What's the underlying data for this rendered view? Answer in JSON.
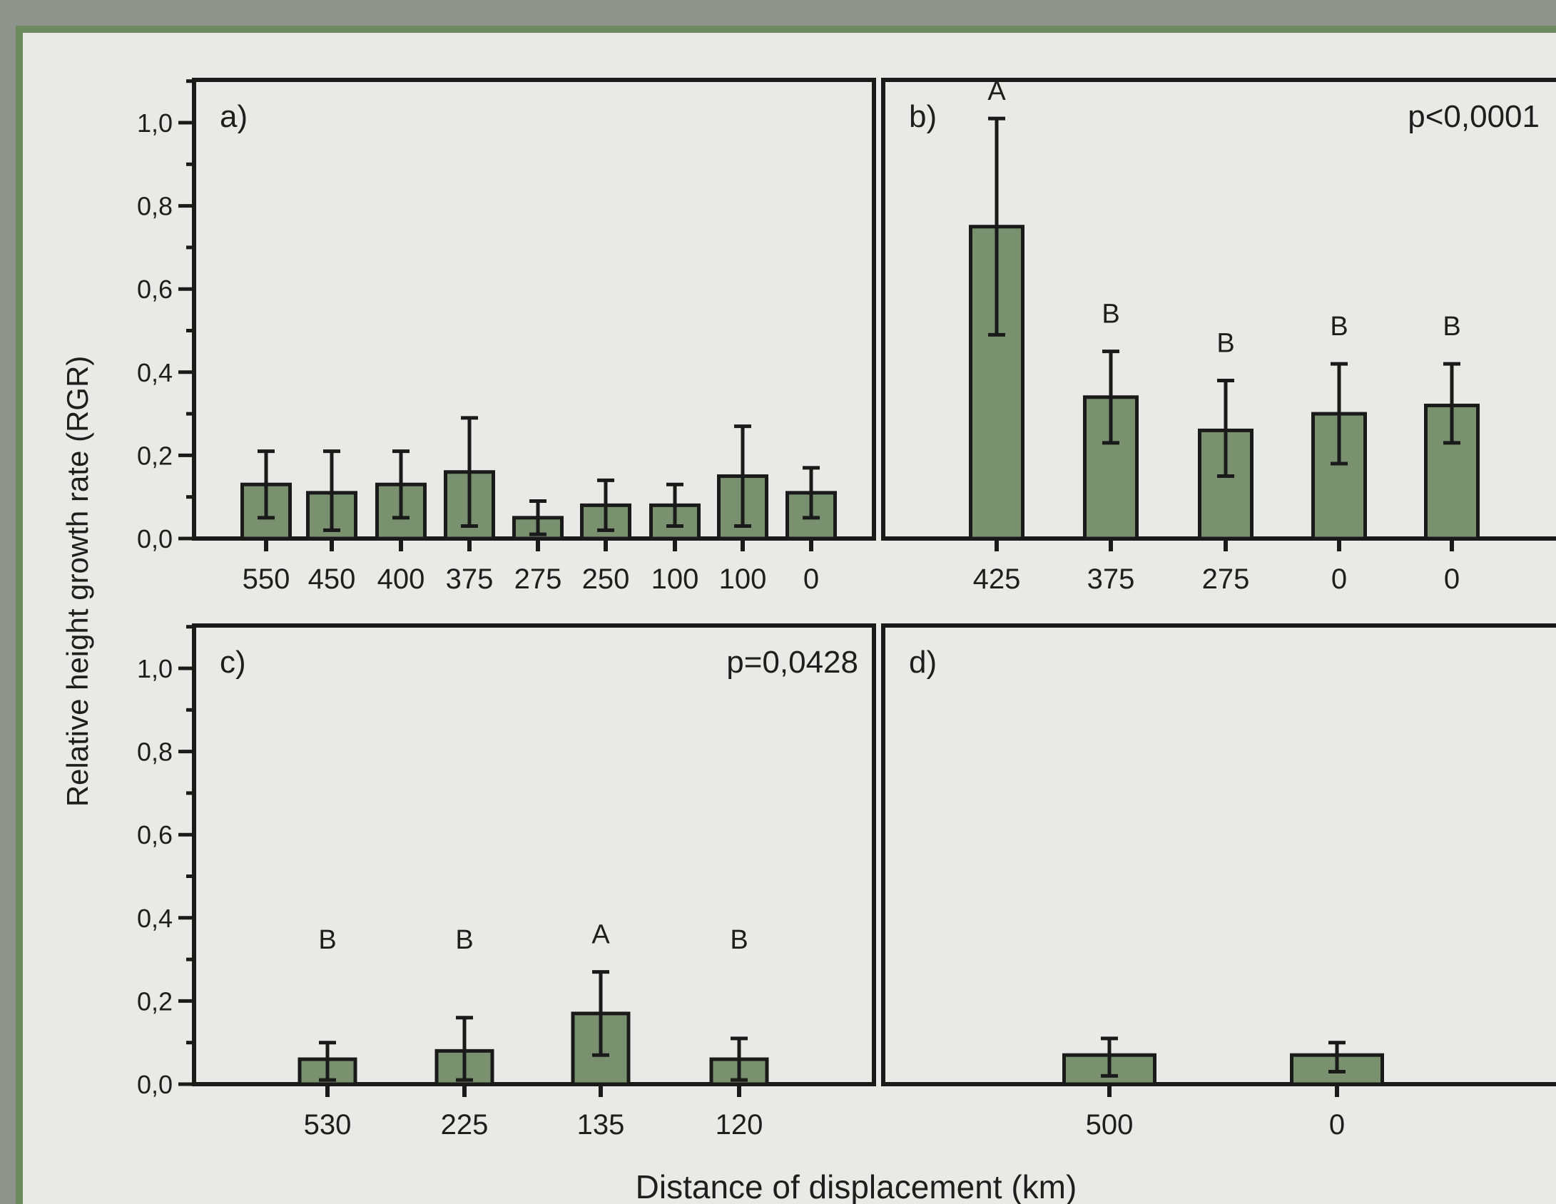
{
  "figure": {
    "ylabel": "Relative height  growth rate (RGR)",
    "xlabel": "Distance of displacement (km)",
    "y_ticks": [
      "0,0",
      "0,2",
      "0,4",
      "0,6",
      "0,8",
      "1,0"
    ],
    "bar_color": "#7a9170",
    "bg_color": "#e9eae8",
    "frame_color": "#6d8a5f"
  },
  "chart_data": [
    {
      "panel": "a)",
      "type": "bar",
      "pvalue": "",
      "categories": [
        "550",
        "450",
        "400",
        "375",
        "275",
        "250",
        "100",
        "100",
        "0"
      ],
      "values": [
        0.13,
        0.11,
        0.13,
        0.16,
        0.05,
        0.08,
        0.08,
        0.15,
        0.11
      ],
      "error_low": [
        0.05,
        0.02,
        0.05,
        0.03,
        0.01,
        0.02,
        0.03,
        0.03,
        0.05
      ],
      "error_high": [
        0.21,
        0.21,
        0.21,
        0.29,
        0.09,
        0.14,
        0.13,
        0.27,
        0.17
      ],
      "letters": [
        "",
        "",
        "",
        "",
        "",
        "",
        "",
        "",
        ""
      ],
      "ylim": [
        0,
        1.0
      ],
      "grid": false
    },
    {
      "panel": "b)",
      "type": "bar",
      "pvalue": "p<0,0001",
      "categories": [
        "425",
        "375",
        "275",
        "0",
        "0"
      ],
      "values": [
        0.75,
        0.34,
        0.26,
        0.3,
        0.32
      ],
      "error_low": [
        0.49,
        0.23,
        0.15,
        0.18,
        0.23
      ],
      "error_high": [
        1.01,
        0.45,
        0.38,
        0.42,
        0.42
      ],
      "letters": [
        "A",
        "B",
        "B",
        "B",
        "B"
      ],
      "ylim": [
        0,
        1.0
      ],
      "grid": false
    },
    {
      "panel": "c)",
      "type": "bar",
      "pvalue": "p=0,0428",
      "categories": [
        "530",
        "225",
        "135",
        "120"
      ],
      "values": [
        0.06,
        0.08,
        0.17,
        0.06
      ],
      "error_low": [
        0.01,
        0.01,
        0.07,
        0.01
      ],
      "error_high": [
        0.1,
        0.16,
        0.27,
        0.11
      ],
      "letters": [
        "B",
        "B",
        "A",
        "B"
      ],
      "ylim": [
        0,
        1.0
      ],
      "grid": false
    },
    {
      "panel": "d)",
      "type": "bar",
      "pvalue": "",
      "categories": [
        "500",
        "0"
      ],
      "values": [
        0.07,
        0.07
      ],
      "error_low": [
        0.02,
        0.03
      ],
      "error_high": [
        0.11,
        0.1
      ],
      "letters": [
        "",
        ""
      ],
      "ylim": [
        0,
        1.0
      ],
      "grid": false
    }
  ]
}
